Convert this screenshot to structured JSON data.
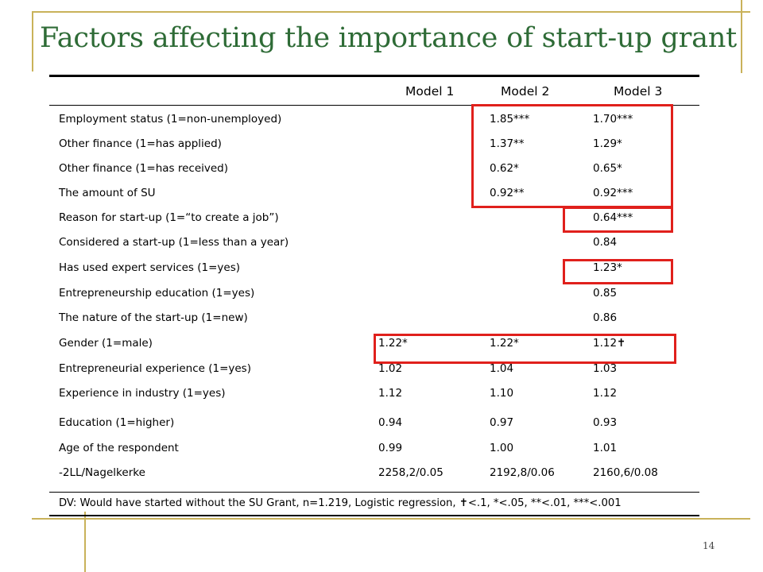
{
  "title": "Factors affecting the importance of start-up grant",
  "slide_number": "14",
  "columns": [
    "Model 1",
    "Model 2",
    "Model 3"
  ],
  "rows": [
    {
      "label": "Employment status (1=non-unemployed)",
      "m1": "",
      "m2": "1.85***",
      "m3": "1.70***"
    },
    {
      "label": "Other finance (1=has applied)",
      "m1": "",
      "m2": "1.37**",
      "m3": "1.29*"
    },
    {
      "label": "Other finance (1=has received)",
      "m1": "",
      "m2": "0.62*",
      "m3": "0.65*"
    },
    {
      "label": "The amount of SU",
      "m1": "",
      "m2": "0.92**",
      "m3": "0.92***"
    },
    {
      "label": "Reason for start-up (1=“to create a job”)",
      "m1": "",
      "m2": "",
      "m3": "0.64***"
    },
    {
      "label": "Considered a start-up (1=less than a year)",
      "m1": "",
      "m2": "",
      "m3": "0.84"
    },
    {
      "label": "Has used expert services (1=yes)",
      "m1": "",
      "m2": "",
      "m3": "1.23*"
    },
    {
      "label": "Entrepreneurship education (1=yes)",
      "m1": "",
      "m2": "",
      "m3": "0.85"
    },
    {
      "label": "The nature of the start-up (1=new)",
      "m1": "",
      "m2": "",
      "m3": "0.86"
    },
    {
      "label": "Gender (1=male)",
      "m1": "1.22*",
      "m2": "1.22*",
      "m3": "1.12✝"
    },
    {
      "label": "Entrepreneurial experience (1=yes)",
      "m1": "1.02",
      "m2": "1.04",
      "m3": "1.03"
    },
    {
      "label": "Experience in industry (1=yes)",
      "m1": "1.12",
      "m2": "1.10",
      "m3": "1.12"
    },
    {
      "label": "Education (1=higher)",
      "m1": "0.94",
      "m2": "0.97",
      "m3": "0.93"
    },
    {
      "label": "Age of the respondent",
      "m1": "0.99",
      "m2": "1.00",
      "m3": "1.01"
    },
    {
      "label": "-2LL/Nagelkerke",
      "m1": "2258,2/0.05",
      "m2": "2192,8/0.06",
      "m3": "2160,6/0.08"
    }
  ],
  "footnote": "DV: Would have started without the SU Grant, n=1.219, Logistic regression, ✝<.1, *<.05, **<.01, ***<.001",
  "colors": {
    "title": "#2e6b36",
    "decoration": "#c9b25a",
    "highlight": "#e0201c"
  }
}
